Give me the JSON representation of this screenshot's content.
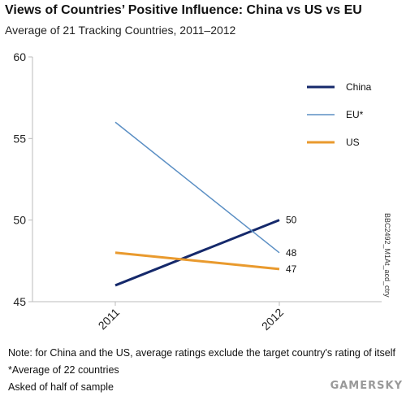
{
  "title": "Views of Countries’ Positive Influence: China vs US vs EU",
  "subtitle": "Average of 21 Tracking Countries, 2011–2012",
  "chart_data": {
    "type": "line",
    "categories": [
      "2011",
      "2012"
    ],
    "series": [
      {
        "name": "China",
        "values": [
          46,
          50
        ],
        "color": "#15296b",
        "end_label": "50"
      },
      {
        "name": "EU*",
        "values": [
          56,
          48
        ],
        "color": "#5b8fc4",
        "end_label": "48"
      },
      {
        "name": "US",
        "values": [
          48,
          47
        ],
        "color": "#e99a2e",
        "end_label": "47"
      }
    ],
    "ylim": [
      45,
      60
    ],
    "yticks": [
      "45",
      "50",
      "55",
      "60"
    ],
    "legend_position": "top-right",
    "grid": false
  },
  "notes": [
    "Note: for China and the US, average ratings exclude the target country's rating of itself",
    "*Average of 22 countries",
    "Asked of half of sample"
  ],
  "side_code": "BBC2492_M1At_acd_ctry",
  "watermark": "GAMERSKY"
}
